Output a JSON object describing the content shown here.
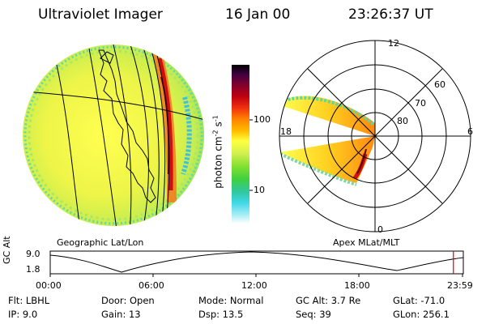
{
  "header": {
    "title": "Ultraviolet Imager",
    "date": "16 Jan 00",
    "time": "23:26:37 UT"
  },
  "colorbar": {
    "label": "photon cm^-2 s^-1",
    "label_main": "photon cm",
    "label_exp1": "-2",
    "label_mid": "s",
    "label_exp2": "-1",
    "ticks": [
      "100",
      "10"
    ],
    "colors": [
      "#000000",
      "#400020",
      "#7a0030",
      "#b0001c",
      "#e01010",
      "#f04010",
      "#ff8000",
      "#ffc000",
      "#ffff40",
      "#c8f050",
      "#80e030",
      "#40d020",
      "#30c880",
      "#30d8e0",
      "#80e8f0",
      "#c8f4f8",
      "#ffffff"
    ]
  },
  "left_panel": {
    "caption": "Geographic Lat/Lon"
  },
  "right_panel": {
    "caption": "Apex MLat/MLT",
    "mlt_labels": [
      "12",
      "18",
      "6",
      "0"
    ],
    "lat_labels": [
      "60",
      "70",
      "80"
    ]
  },
  "timeline": {
    "ylabel": "GC Alt",
    "y_ticks": [
      "9.0",
      "1.8"
    ],
    "x_ticks": [
      "00:00",
      "06:00",
      "12:00",
      "18:00",
      "23:59"
    ],
    "current_time_fraction": 0.976,
    "marker_color": "#e00000"
  },
  "info": {
    "flt": "Flt: LBHL",
    "ip": "IP:  9.0",
    "door": "Door: Open",
    "gain": "Gain: 13",
    "mode": "Mode: Normal",
    "dsp": "Dsp:   13.5",
    "gc_alt": "GC Alt: 3.7 Re",
    "seq": "Seq: 39",
    "glat": "GLat: -71.0",
    "glon": "GLon: 256.1"
  }
}
